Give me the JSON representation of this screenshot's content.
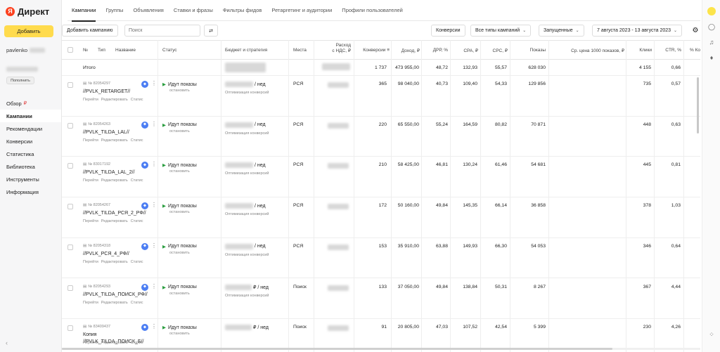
{
  "brand": {
    "name": "Директ"
  },
  "sidebar": {
    "add_button": "Добавить",
    "user_prefix": "pavlenko",
    "topup_button": "Пополнить",
    "items": [
      {
        "label": "Обзор",
        "badge": "₽"
      },
      {
        "label": "Кампании",
        "active": true
      },
      {
        "label": "Рекомендации"
      },
      {
        "label": "Конверсии"
      },
      {
        "label": "Статистика"
      },
      {
        "label": "Библиотека"
      },
      {
        "label": "Инструменты"
      },
      {
        "label": "Информация"
      }
    ],
    "collapse_icon": "‹"
  },
  "tabs": [
    "Кампании",
    "Группы",
    "Объявления",
    "Ставки и фразы",
    "Фильтры фидов",
    "Ретаргетинг и аудитории",
    "Профили пользователей"
  ],
  "toolbar": {
    "add_campaign": "Добавить кампанию",
    "search_placeholder": "Поиск",
    "conversions": "Конверсии",
    "campaign_types": "Все типы кампаний",
    "status_filter": "Запущенные",
    "date_range": "7 августа 2023 - 13 августа 2023"
  },
  "columns": {
    "num": "№",
    "type": "Тип",
    "name": "Название",
    "status": "Статус",
    "budget": "Бюджет и стратегия",
    "places": "Места",
    "spend": "Расход\nс НДС, ₽",
    "conversions": "Конверсии ≡",
    "income": "Доход, ₽",
    "drr": "ДРР, %",
    "cpa": "CPA, ₽",
    "cpc": "CPC, ₽",
    "shows": "Показы",
    "cpm": "Ср. цена 1000 показов, ₽",
    "clicks": "Клики",
    "ctr": "CTR, %",
    "pct_more": "% Ко"
  },
  "total": {
    "label": "Итого",
    "conversions": "1 737",
    "income": "473 955,00",
    "drr": "48,72",
    "cpa": "132,93",
    "cpc": "55,57",
    "shows": "628 030",
    "clicks": "4 155",
    "ctr": "0,66"
  },
  "row_links": {
    "go": "Перейти",
    "edit": "Редактировать",
    "stats": "Статис"
  },
  "campaigns": [
    {
      "id": "№ 82054297",
      "name": "//PVLK_RETARGET//",
      "status": "Идут показы",
      "stop": "остановить",
      "budget_suffix": "/ нед",
      "strategy": "Оптимизация конверсий",
      "place": "РСЯ",
      "conversions": "365",
      "income": "98 040,00",
      "drr": "40,73",
      "cpa": "109,40",
      "cpc": "54,33",
      "shows": "129 856",
      "clicks": "735",
      "ctr": "0,57"
    },
    {
      "id": "№ 82054263",
      "name": "//PVLK_TILDA_LAL//",
      "status": "Идут показы",
      "stop": "остановить",
      "budget_suffix": "/ нед",
      "strategy": "Оптимизация конверсий",
      "place": "РСЯ",
      "conversions": "220",
      "income": "65 550,00",
      "drr": "55,24",
      "cpa": "164,59",
      "cpc": "80,82",
      "shows": "70 871",
      "clicks": "448",
      "ctr": "0,63"
    },
    {
      "id": "№ 83017192",
      "name": "//PVLK_TILDA_LAL_2//",
      "status": "Идут показы",
      "stop": "остановить",
      "budget_suffix": "/ нед",
      "strategy": "Оптимизация конверсий",
      "place": "РСЯ",
      "conversions": "210",
      "income": "58 425,00",
      "drr": "46,81",
      "cpa": "130,24",
      "cpc": "61,46",
      "shows": "54 681",
      "clicks": "445",
      "ctr": "0,81"
    },
    {
      "id": "№ 82054267",
      "name": "//PVLK_TILDA_РСЯ_2_РФ//",
      "status": "Идут показы",
      "stop": "остановить",
      "budget_suffix": "/ нед",
      "strategy": "Оптимизация конверсий",
      "place": "РСЯ",
      "conversions": "172",
      "income": "50 160,00",
      "drr": "49,84",
      "cpa": "145,35",
      "cpc": "66,14",
      "shows": "36 858",
      "clicks": "378",
      "ctr": "1,03"
    },
    {
      "id": "№ 82054318",
      "name": "//PVLK_РСЯ_4_РФ//",
      "status": "Идут показы",
      "stop": "остановить",
      "budget_suffix": "/ нед",
      "strategy": "Оптимизация конверсий",
      "place": "РСЯ",
      "conversions": "153",
      "income": "35 910,00",
      "drr": "63,88",
      "cpa": "149,93",
      "cpc": "66,30",
      "shows": "54 053",
      "clicks": "346",
      "ctr": "0,64"
    },
    {
      "id": "№ 82054293",
      "name": "//PVLK_TILDA_ПОИСК_РФ//",
      "status": "Идут показы",
      "stop": "остановить",
      "budget_suffix": "₽ / нед",
      "strategy": "Оптимизация конверсий",
      "place": "Поиск",
      "conversions": "133",
      "income": "37 050,00",
      "drr": "49,84",
      "cpa": "138,84",
      "cpc": "50,31",
      "shows": "8 267",
      "clicks": "367",
      "ctr": "4,44"
    },
    {
      "id": "№ 83409437",
      "name": "Копия",
      "name2": "//PVLK_TILDA_ПОИСК_Б//",
      "status": "Идут показы",
      "stop": "остановить",
      "budget_suffix": "₽ / нед",
      "strategy": "",
      "place": "Поиск",
      "conversions": "91",
      "income": "20 805,00",
      "drr": "47,03",
      "cpa": "107,52",
      "cpc": "42,54",
      "shows": "5 399",
      "clicks": "230",
      "ctr": "4,26"
    }
  ]
}
